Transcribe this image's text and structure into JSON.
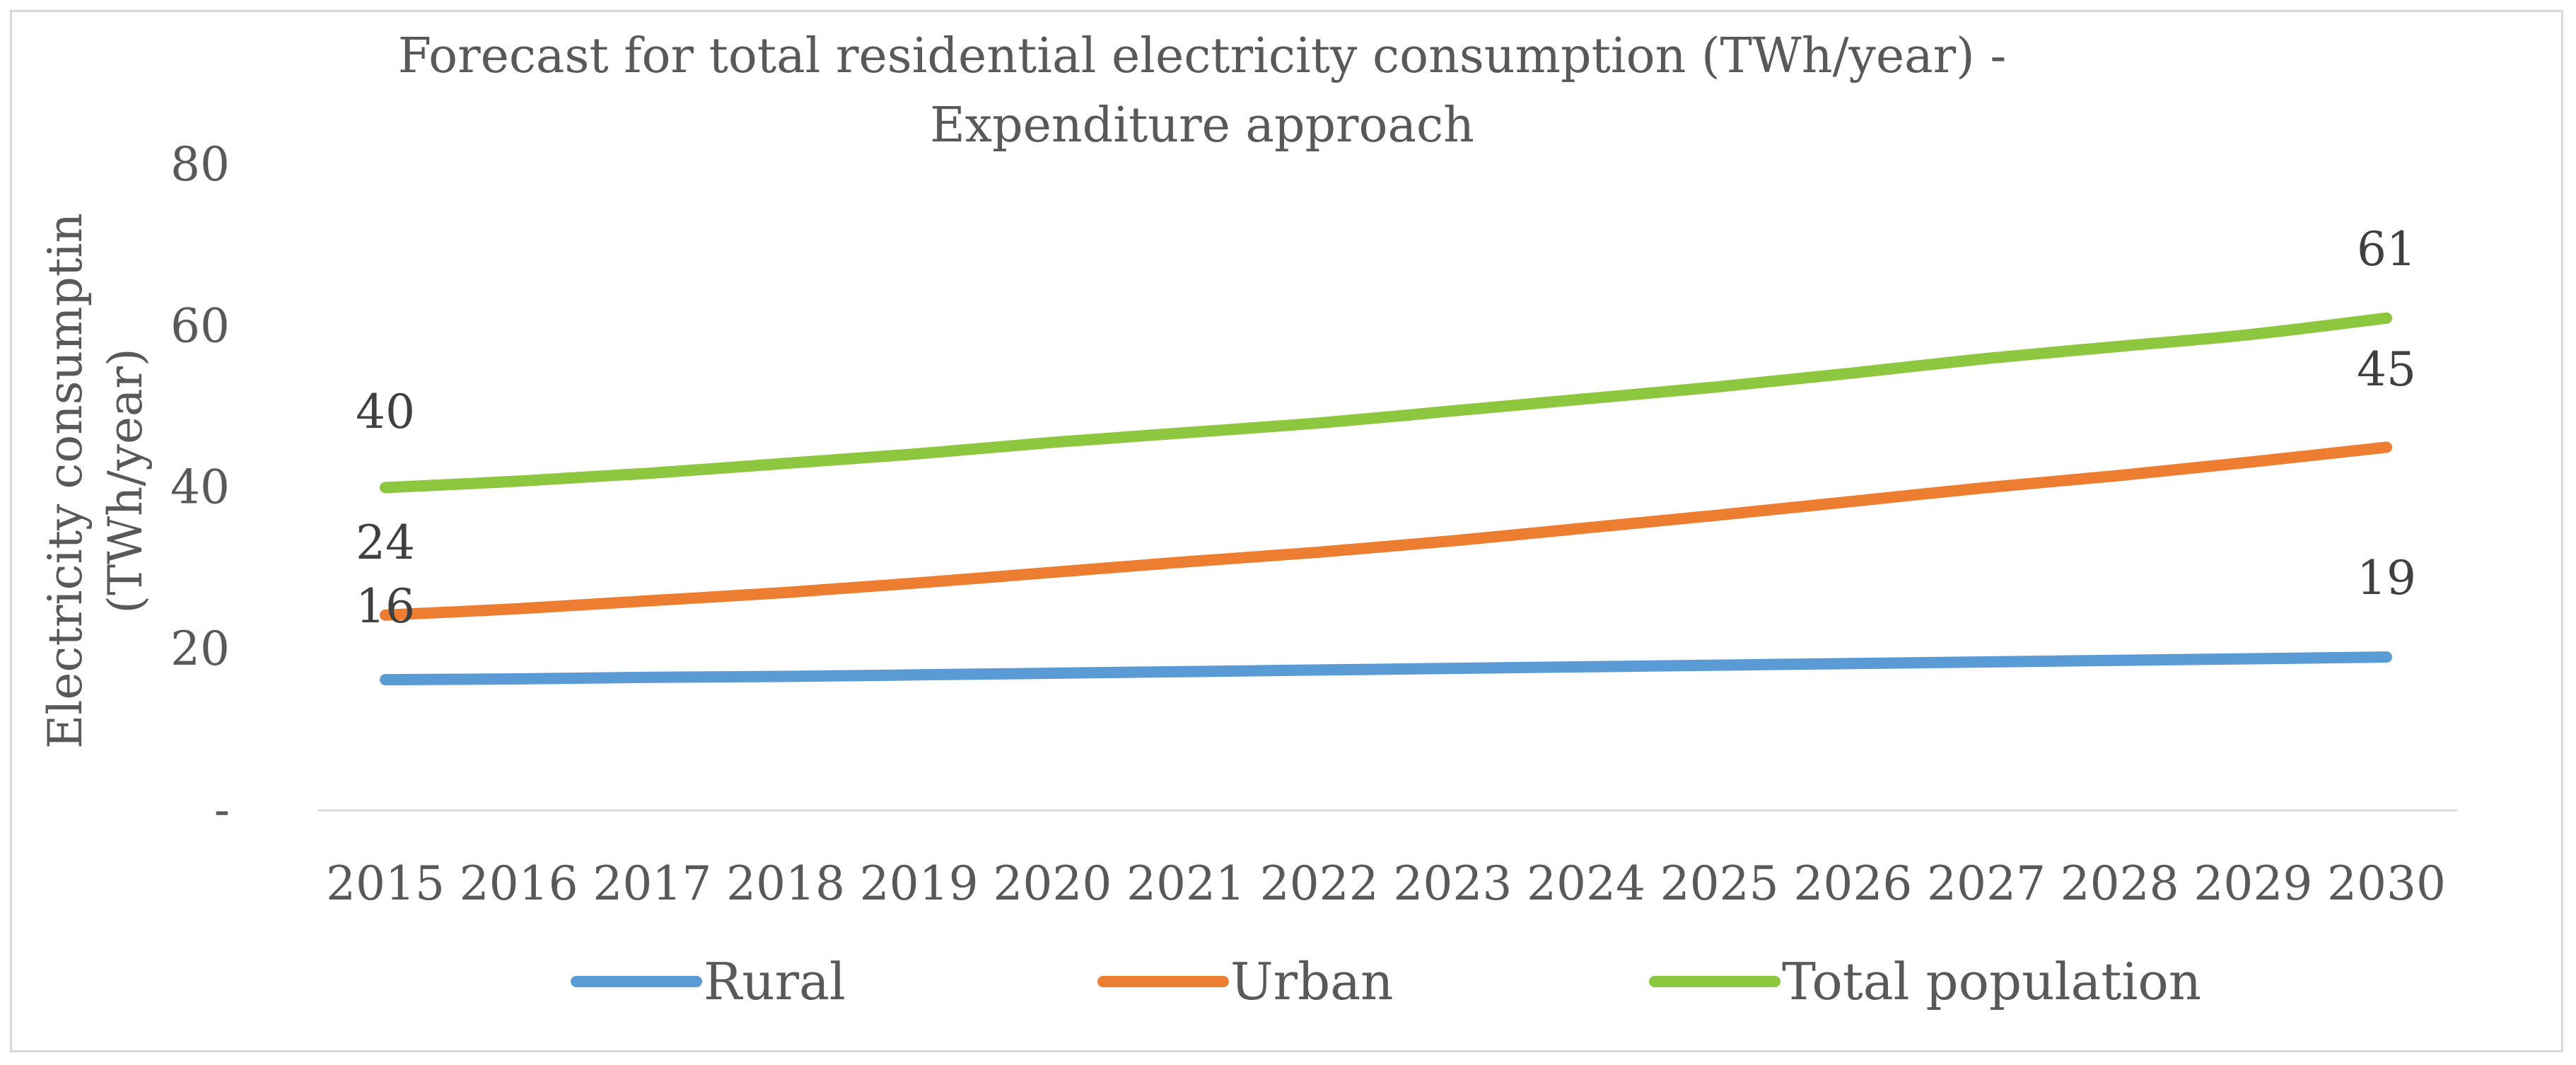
{
  "chart_data": {
    "type": "line",
    "title": "Forecast for total residential electricity consumption (TWh/year) - Expenditure approach",
    "title_lines": [
      "Forecast for total residential electricity consumption (TWh/year) -",
      "Expenditure approach"
    ],
    "xlabel": "",
    "ylabel": "Electricity consumptin (TWh/year)",
    "ylabel_lines": [
      "Electricity consumptin",
      "(TWh/year)"
    ],
    "ylim": [
      0,
      80
    ],
    "yticks": [
      0,
      20,
      40,
      60,
      80
    ],
    "ytick_labels": [
      "-",
      "20",
      "40",
      "60",
      "80"
    ],
    "grid": false,
    "legend_position": "bottom",
    "categories": [
      "2015",
      "2016",
      "2017",
      "2018",
      "2019",
      "2020",
      "2021",
      "2022",
      "2023",
      "2024",
      "2025",
      "2026",
      "2027",
      "2028",
      "2029",
      "2030"
    ],
    "series": [
      {
        "name": "Rural",
        "color": "#5b9bd5",
        "values": [
          16.2,
          16.3,
          16.5,
          16.6,
          16.8,
          17.0,
          17.2,
          17.4,
          17.6,
          17.8,
          18.0,
          18.2,
          18.4,
          18.6,
          18.8,
          19.0
        ],
        "end_labels": [
          "16",
          "19"
        ]
      },
      {
        "name": "Urban",
        "color": "#ed7d31",
        "values": [
          24.2,
          25.0,
          26.0,
          27.0,
          28.2,
          29.5,
          30.8,
          32.0,
          33.4,
          35.0,
          36.6,
          38.3,
          40.0,
          41.5,
          43.2,
          45.0
        ],
        "end_labels": [
          "24",
          "45"
        ]
      },
      {
        "name": "Total population",
        "color": "#8dc63f",
        "values": [
          40.0,
          40.8,
          41.8,
          43.0,
          44.2,
          45.6,
          46.8,
          48.0,
          49.5,
          51.0,
          52.5,
          54.2,
          56.0,
          57.5,
          59.0,
          61.0
        ],
        "end_labels": [
          "40",
          "61"
        ]
      }
    ]
  }
}
